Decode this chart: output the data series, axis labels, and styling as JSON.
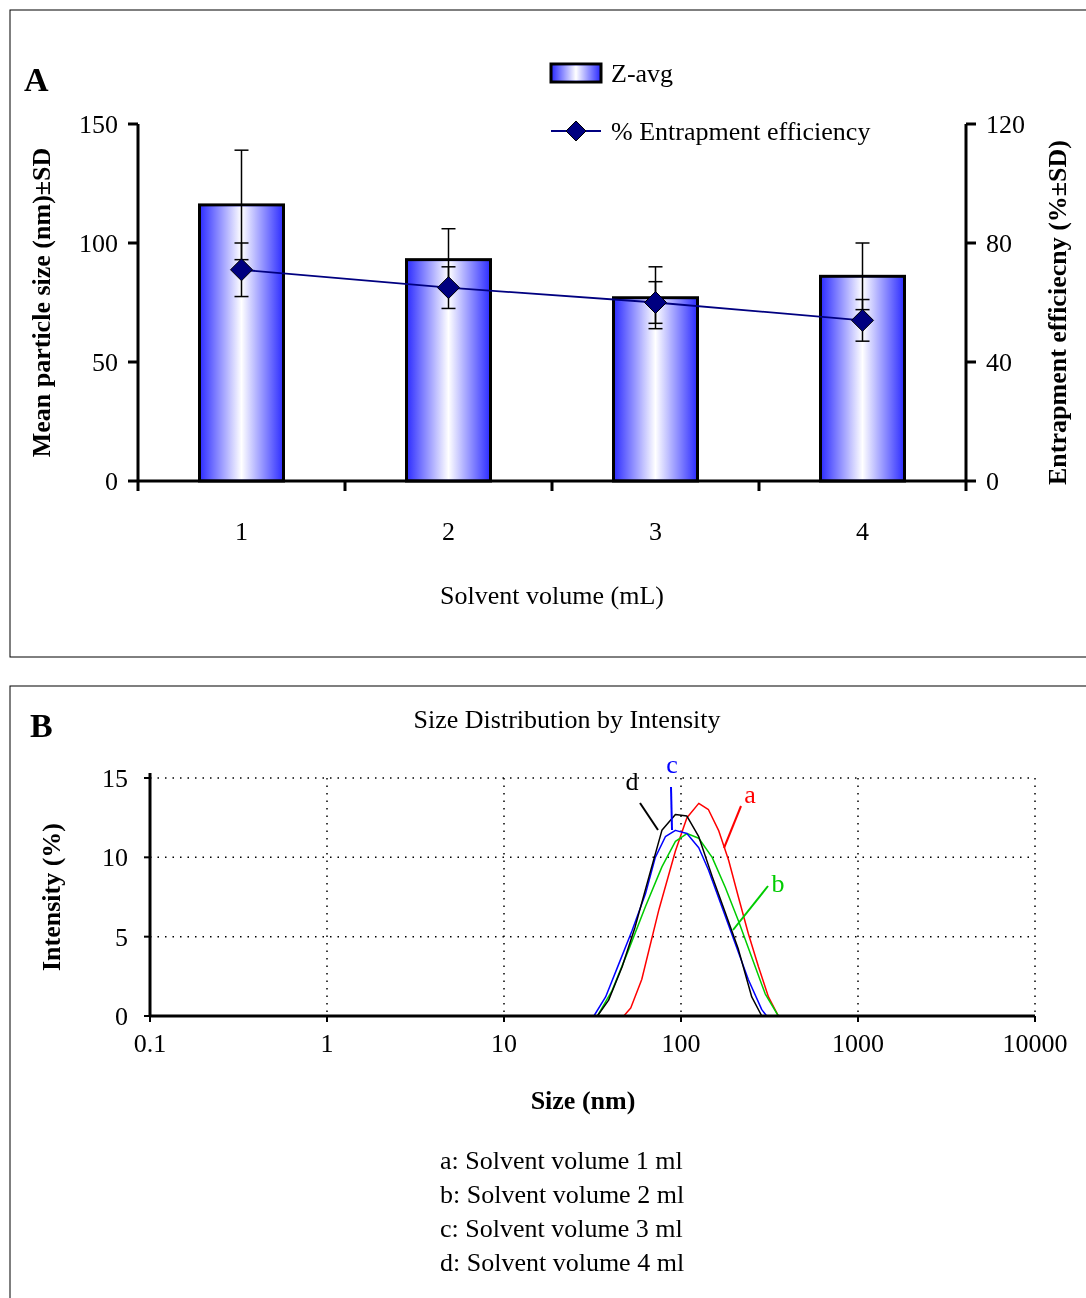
{
  "chart_data": [
    {
      "type": "bar",
      "annotations": [
        "A"
      ],
      "categories": [
        "1",
        "2",
        "3",
        "4"
      ],
      "xlabel": "Solvent volume (mL)",
      "ylabel": "Mean particle size (nm)±SD",
      "y2label": "Entrapment efficiecny (%±SD)",
      "ylim": [
        0,
        150
      ],
      "yticks": [
        0,
        50,
        100,
        150
      ],
      "y2lim": [
        0,
        120
      ],
      "y2ticks": [
        0,
        40,
        80,
        120
      ],
      "legend": "top",
      "grid": false,
      "series": [
        {
          "name": "Z-avg",
          "type": "bar",
          "color": "#3333ff",
          "values": [
            116,
            93,
            77,
            86
          ],
          "errors": [
            23,
            13,
            13,
            14
          ]
        },
        {
          "name": "% Entrapment efficiency",
          "type": "line",
          "axis": "y2",
          "color": "#000080",
          "marker": "diamond",
          "values": [
            71,
            65,
            60,
            54
          ],
          "errors": [
            9,
            7,
            7,
            7
          ]
        }
      ]
    },
    {
      "type": "line",
      "title": "Size Distribution by Intensity",
      "annotations": [
        "B",
        "a: Solvent volume 1 ml",
        "b: Solvent volume 2 ml",
        "c: Solvent volume 3 ml",
        "d: Solvent volume 4 ml"
      ],
      "xlabel": "Size (nm)",
      "ylabel": "Intensity (%)",
      "log": "x",
      "xlim": [
        0.1,
        10000
      ],
      "xticks": [
        0.1,
        1,
        10,
        100,
        1000,
        10000
      ],
      "ylim": [
        0,
        15
      ],
      "yticks": [
        0,
        5,
        10,
        15
      ],
      "grid": true,
      "marker": "none",
      "series": [
        {
          "name": "a",
          "color": "#ff0000",
          "x": [
            47.5,
            52,
            60,
            75,
            93,
            108,
            126,
            143,
            163,
            186,
            211,
            240,
            274,
            312,
            355
          ],
          "values": [
            0,
            0.5,
            2.3,
            6.7,
            10.4,
            12.5,
            13.4,
            13,
            11.7,
            9.8,
            7.5,
            5.2,
            3.1,
            1.2,
            0
          ]
        },
        {
          "name": "b",
          "color": "#00cc00",
          "x": [
            33.7,
            40.8,
            50.7,
            63,
            78,
            93,
            108,
            126,
            150,
            178,
            211,
            251,
            299,
            355
          ],
          "values": [
            0,
            1.6,
            4.2,
            6.9,
            9.4,
            11,
            11.5,
            11.2,
            10,
            8.1,
            6,
            3.7,
            1.4,
            0
          ]
        },
        {
          "name": "c",
          "color": "#0000ff",
          "x": [
            32.2,
            37.5,
            44.6,
            53,
            63,
            71.6,
            81.6,
            93,
            108,
            126,
            143,
            170,
            202,
            240,
            286,
            305
          ],
          "values": [
            0,
            1.2,
            3.3,
            5.4,
            7.7,
            10,
            11.3,
            11.7,
            11.5,
            10.6,
            9.2,
            6.9,
            4.6,
            2.3,
            0.4,
            0
          ]
        },
        {
          "name": "d",
          "color": "#000000",
          "x": [
            33.7,
            39,
            46.5,
            55,
            66,
            78,
            93,
            108,
            126,
            150,
            178,
            211,
            251,
            286
          ],
          "values": [
            0,
            1,
            3.1,
            5.6,
            8.8,
            11.7,
            12.7,
            12.6,
            11.3,
            8.8,
            6.5,
            4.2,
            1.2,
            0
          ]
        }
      ]
    }
  ]
}
